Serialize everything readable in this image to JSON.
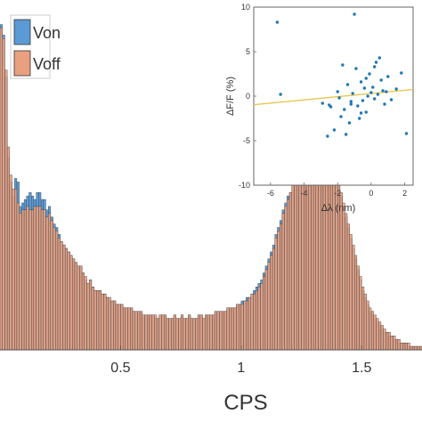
{
  "chart_data": [
    {
      "type": "bar",
      "title": "",
      "xlabel": "CPS",
      "ylabel": "",
      "xlim": [
        0,
        1.75
      ],
      "ylim": [
        0,
        100
      ],
      "xticks": [
        "0.5",
        "1",
        "1.5"
      ],
      "xtick_values": [
        0.5,
        1,
        1.5
      ],
      "grid": false,
      "legend": "top-left",
      "bins": {
        "start": 0,
        "width": 0.01,
        "series": [
          {
            "name": "Von",
            "color": "#5b9bd5",
            "values": [
              93,
              90,
              78,
              55,
              48,
              44,
              49,
              48,
              41,
              42,
              43,
              44,
              45,
              44,
              43,
              45,
              45,
              43,
              43,
              40,
              41,
              38,
              36,
              35,
              33,
              31,
              30,
              29,
              28,
              27,
              26,
              25,
              24,
              24,
              22,
              20,
              19,
              20,
              18,
              17,
              17,
              17,
              16,
              16,
              15,
              14,
              14,
              14,
              13,
              13,
              13,
              12,
              12,
              12,
              12,
              11,
              11,
              11,
              11,
              10,
              10,
              10,
              10,
              10,
              9,
              9,
              10,
              10,
              10,
              9,
              9,
              9,
              10,
              9,
              9,
              10,
              9,
              9,
              10,
              9,
              9,
              9,
              10,
              10,
              9,
              10,
              10,
              10,
              10,
              11,
              11,
              11,
              11,
              11,
              12,
              12,
              12,
              12,
              13,
              13,
              14,
              14,
              15,
              15,
              16,
              17,
              18,
              19,
              20,
              22,
              24,
              26,
              28,
              30,
              33,
              35,
              37,
              40,
              42,
              44,
              45,
              47,
              48,
              50,
              51,
              53,
              54,
              55,
              56,
              57,
              58,
              58,
              58,
              57,
              57,
              56,
              55,
              53,
              51,
              49,
              47,
              44,
              41,
              38,
              35,
              32,
              29,
              26,
              23,
              20,
              17,
              15,
              13,
              11,
              10,
              9,
              8,
              7,
              6,
              5,
              5,
              4,
              4,
              3,
              3,
              2,
              2,
              2,
              2,
              1,
              1,
              1,
              1,
              1,
              1
            ]
          },
          {
            "name": "Voff",
            "color": "#e8a07f",
            "values": [
              92,
              89,
              80,
              58,
              50,
              46,
              46,
              42,
              39,
              40,
              40,
              41,
              40,
              40,
              41,
              41,
              41,
              40,
              40,
              38,
              39,
              37,
              35,
              34,
              32,
              31,
              30,
              29,
              28,
              27,
              26,
              25,
              24,
              24,
              22,
              21,
              19,
              20,
              18,
              17,
              17,
              17,
              16,
              16,
              15,
              15,
              14,
              14,
              13,
              13,
              13,
              12,
              12,
              12,
              12,
              11,
              11,
              11,
              11,
              10,
              10,
              10,
              10,
              10,
              10,
              9,
              10,
              10,
              10,
              9,
              9,
              9,
              10,
              9,
              9,
              10,
              9,
              9,
              10,
              9,
              9,
              9,
              10,
              10,
              9,
              10,
              10,
              10,
              10,
              11,
              11,
              11,
              11,
              11,
              12,
              12,
              12,
              12,
              13,
              13,
              13,
              14,
              14,
              15,
              16,
              16,
              17,
              18,
              19,
              21,
              23,
              25,
              27,
              29,
              32,
              34,
              36,
              39,
              41,
              43,
              45,
              47,
              48,
              50,
              51,
              53,
              54,
              55,
              56,
              57,
              58,
              59,
              59,
              58,
              58,
              57,
              56,
              54,
              52,
              50,
              48,
              45,
              42,
              39,
              36,
              33,
              30,
              27,
              24,
              21,
              18,
              16,
              14,
              12,
              11,
              10,
              9,
              8,
              7,
              6,
              5,
              5,
              4,
              4,
              3,
              3,
              2,
              2,
              2,
              2,
              1,
              1,
              1,
              1,
              1
            ]
          }
        ]
      }
    },
    {
      "type": "scatter",
      "title": "",
      "xlabel": "Δλ (nm)",
      "ylabel": "ΔF/F (%)",
      "xlim": [
        -7,
        2.5
      ],
      "ylim": [
        -10,
        10
      ],
      "xticks": [
        -6,
        -4,
        -2,
        0,
        2
      ],
      "yticks": [
        -10,
        -5,
        0,
        5,
        10
      ],
      "grid": false,
      "points_color": "#1f77b4",
      "fit_color": "#e8c44a",
      "fit": {
        "slope": 0.18,
        "intercept": 0.3
      },
      "x": [
        -5.6,
        -5.4,
        -2.9,
        -2.6,
        -2.4,
        -2.2,
        -2.0,
        -1.8,
        -1.7,
        -1.6,
        -1.5,
        -1.4,
        -1.3,
        -1.2,
        -1.1,
        -1.0,
        -0.9,
        -0.8,
        -0.7,
        -0.6,
        -0.5,
        -0.4,
        -0.3,
        -0.2,
        -0.1,
        0.0,
        0.1,
        0.2,
        0.3,
        0.4,
        0.5,
        0.6,
        0.8,
        1.0,
        1.2,
        1.5,
        1.8,
        2.1,
        -1.9,
        -0.6,
        -0.3,
        0.2,
        0.7,
        -2.5,
        -1.2,
        0.9
      ],
      "y": [
        8.3,
        0.2,
        -0.8,
        -4.5,
        -1.2,
        -3.8,
        0.5,
        -2.3,
        3.5,
        -1.5,
        -4.3,
        1.3,
        -3.0,
        -0.6,
        0.3,
        9.2,
        3.1,
        -1.1,
        -2.5,
        1.6,
        -0.5,
        0.9,
        -1.8,
        0.0,
        2.5,
        0.4,
        1.0,
        -0.3,
        3.8,
        0.2,
        4.3,
        1.8,
        -0.9,
        2.2,
        -0.4,
        0.8,
        2.6,
        -4.2,
        -0.2,
        -1.9,
        2.0,
        3.3,
        0.6,
        -1.0,
        -0.9,
        0.5
      ]
    }
  ],
  "legend": {
    "items": [
      {
        "label": "Von",
        "color": "#5b9bd5"
      },
      {
        "label": "Voff",
        "color": "#e8a07f"
      }
    ]
  }
}
